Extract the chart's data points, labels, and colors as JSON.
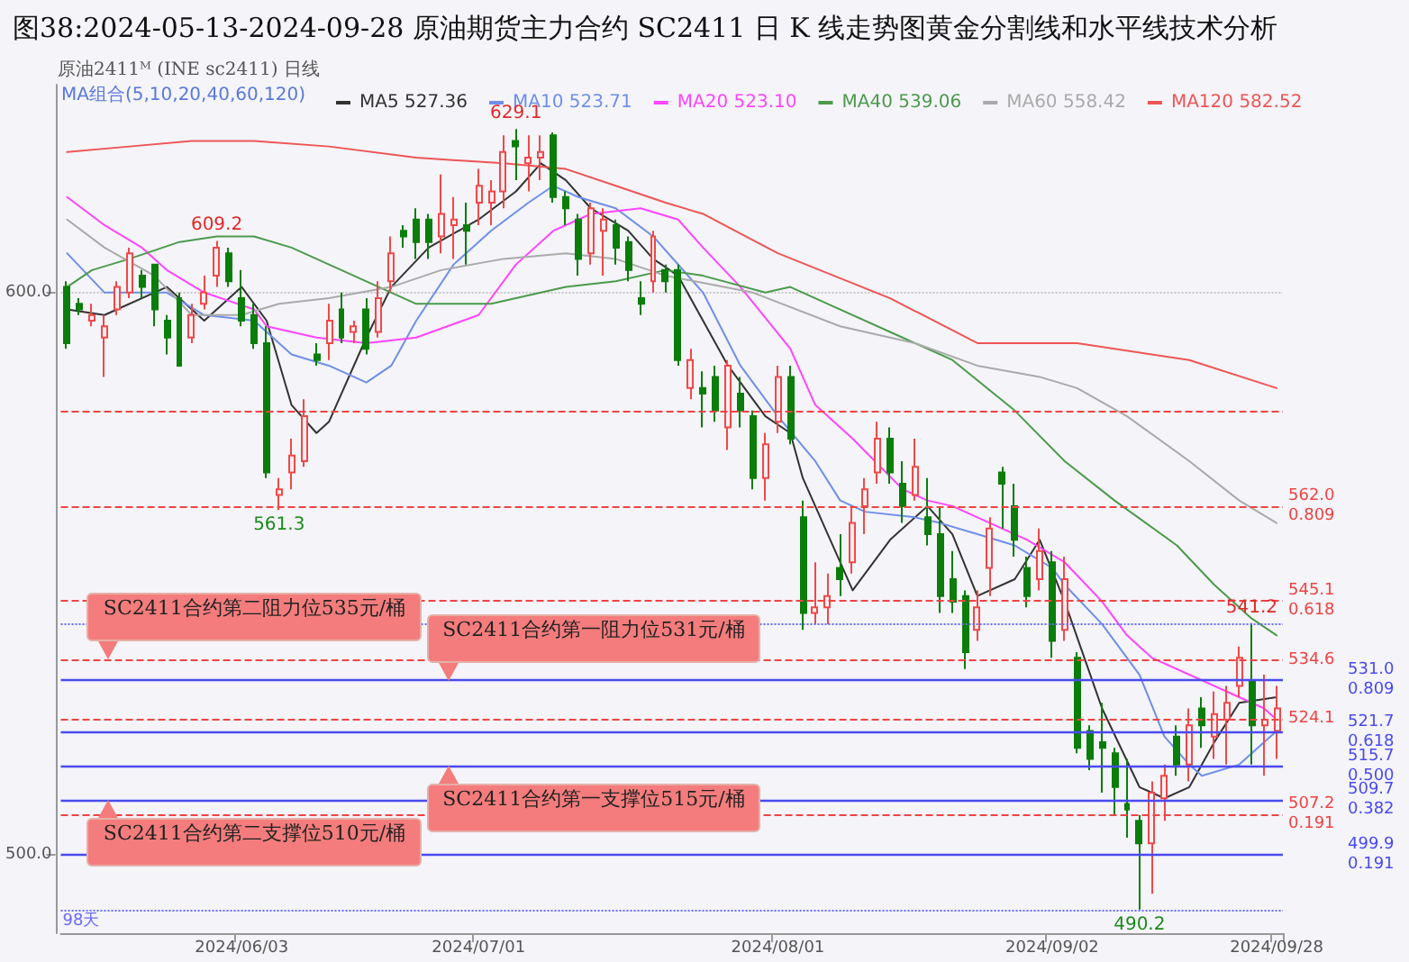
{
  "chart_data": {
    "type": "candlestick",
    "title": "图38:2024-05-13-2024-09-28 原油期货主力合约 SC2411 日 K 线走势图黄金分割线和水平线技术分析",
    "categories": [
      null,
      null,
      null,
      null,
      null,
      null,
      null,
      null,
      null,
      null,
      null,
      null,
      null,
      null,
      "2024/06/03",
      null,
      null,
      null,
      null,
      null,
      null,
      null,
      null,
      null,
      null,
      null,
      null,
      null,
      null,
      null,
      null,
      null,
      null,
      "2024/07/01",
      null,
      null,
      null,
      null,
      null,
      null,
      null,
      null,
      null,
      null,
      null,
      null,
      null,
      null,
      null,
      null,
      null,
      null,
      null,
      null,
      null,
      null,
      null,
      "2024/08/01",
      null,
      null,
      null,
      null,
      null,
      null,
      null,
      null,
      null,
      null,
      null,
      null,
      null,
      null,
      null,
      null,
      null,
      null,
      null,
      null,
      null,
      "2024/09/02",
      null,
      null,
      null,
      null,
      null,
      null,
      null,
      null,
      null,
      null,
      null,
      null,
      null,
      null,
      null,
      null,
      null,
      "2024/09/28"
    ],
    "ohlc": [
      [
        601,
        602,
        590,
        591
      ],
      [
        598,
        599,
        596,
        597
      ],
      [
        595,
        598,
        594,
        596
      ],
      [
        592,
        596,
        585,
        594
      ],
      [
        597,
        602,
        596,
        601
      ],
      [
        600,
        608,
        599,
        607
      ],
      [
        603,
        604,
        599,
        601
      ],
      [
        605,
        605,
        594,
        597
      ],
      [
        595,
        596,
        589,
        592
      ],
      [
        599,
        600,
        587,
        587
      ],
      [
        592,
        598,
        591,
        596
      ],
      [
        598,
        603,
        597,
        600
      ],
      [
        603,
        609.2,
        601,
        608
      ],
      [
        607,
        608,
        601,
        602
      ],
      [
        599,
        604,
        594,
        595
      ],
      [
        596,
        598,
        590,
        591
      ],
      [
        591,
        594,
        567,
        568
      ],
      [
        564,
        567,
        561.3,
        565
      ],
      [
        568,
        574,
        565,
        571
      ],
      [
        570,
        581,
        569,
        578
      ],
      [
        589,
        591,
        587,
        588
      ],
      [
        591,
        598,
        588,
        595
      ],
      [
        597,
        600,
        591,
        592
      ],
      [
        593,
        595,
        591,
        594
      ],
      [
        597,
        599,
        589,
        590
      ],
      [
        593,
        602,
        592,
        599
      ],
      [
        602,
        610,
        600,
        607
      ],
      [
        611,
        612,
        608,
        610
      ],
      [
        613,
        615,
        606,
        609
      ],
      [
        613,
        614,
        606,
        609
      ],
      [
        610,
        621,
        607,
        614
      ],
      [
        612,
        617,
        606,
        613
      ],
      [
        612,
        616,
        605,
        611
      ],
      [
        616,
        622,
        612,
        619
      ],
      [
        616,
        620,
        612,
        618
      ],
      [
        618,
        628,
        615,
        625
      ],
      [
        627,
        629.1,
        620,
        626
      ],
      [
        623,
        628,
        618,
        624
      ],
      [
        624,
        628,
        620,
        625
      ],
      [
        628,
        628.5,
        616,
        617
      ],
      [
        617,
        618,
        612,
        615
      ],
      [
        613,
        614,
        603,
        606
      ],
      [
        607,
        616,
        605,
        615
      ],
      [
        611,
        615,
        603,
        613
      ],
      [
        612,
        613,
        605,
        608
      ],
      [
        609,
        610,
        602,
        604
      ],
      [
        599,
        602,
        596,
        598
      ],
      [
        602,
        611,
        600,
        610
      ],
      [
        604,
        605,
        600,
        602
      ],
      [
        604,
        605,
        587,
        588
      ],
      [
        583,
        590,
        581,
        588
      ],
      [
        583,
        586,
        576,
        582
      ],
      [
        585,
        587,
        577,
        579
      ],
      [
        576,
        588,
        572,
        587
      ],
      [
        582,
        585,
        576,
        579
      ],
      [
        578,
        579,
        565,
        567
      ],
      [
        567,
        575,
        563,
        573
      ],
      [
        577,
        587,
        575,
        585
      ],
      [
        585,
        587,
        573,
        574
      ],
      [
        560,
        563,
        540,
        543
      ],
      [
        543,
        552,
        541,
        544
      ],
      [
        544,
        550,
        541,
        546
      ],
      [
        551,
        557,
        546,
        549
      ],
      [
        552,
        562,
        550,
        559
      ],
      [
        562,
        567,
        557,
        565
      ],
      [
        568,
        577,
        566,
        574
      ],
      [
        574,
        576,
        566,
        568
      ],
      [
        566,
        570,
        559,
        562
      ],
      [
        564,
        574,
        563,
        569
      ],
      [
        560,
        567,
        555,
        557
      ],
      [
        557,
        562,
        543,
        546
      ],
      [
        549,
        554,
        543,
        545
      ],
      [
        546,
        547,
        533,
        536
      ],
      [
        540,
        547,
        538,
        544
      ],
      [
        551,
        560,
        546,
        558
      ],
      [
        568,
        569,
        558,
        566
      ],
      [
        562,
        566,
        553,
        556
      ],
      [
        551,
        553,
        544,
        546
      ],
      [
        549,
        558,
        547,
        554
      ],
      [
        552,
        554,
        535,
        538
      ],
      [
        540,
        553,
        538,
        549
      ],
      [
        535,
        536,
        518,
        519
      ],
      [
        522,
        523,
        515,
        517
      ],
      [
        520,
        527,
        511,
        519
      ],
      [
        518,
        519,
        507,
        512
      ],
      [
        509,
        517,
        503,
        508
      ],
      [
        506,
        507,
        490.2,
        502
      ],
      [
        502,
        513,
        493,
        511
      ],
      [
        510,
        516,
        506,
        514
      ],
      [
        521,
        523,
        514,
        516
      ],
      [
        516,
        526,
        513,
        523
      ],
      [
        526,
        528,
        519,
        523
      ],
      [
        521,
        529,
        517,
        525
      ],
      [
        524,
        530,
        516,
        527
      ],
      [
        530,
        537,
        528,
        535
      ],
      [
        531,
        541.2,
        516,
        523
      ],
      [
        523,
        532,
        514,
        524
      ],
      [
        522,
        530,
        517,
        526
      ]
    ],
    "series": [
      {
        "name": "MA5 527.36",
        "type": "line",
        "color": "#333333",
        "values": [
          597,
          null,
          null,
          596,
          null,
          null,
          null,
          null,
          601,
          null,
          null,
          595,
          null,
          null,
          601,
          null,
          595,
          null,
          580,
          null,
          575,
          577,
          null,
          null,
          592,
          null,
          601,
          null,
          null,
          608,
          null,
          null,
          null,
          613,
          null,
          null,
          618,
          null,
          623,
          null,
          620,
          null,
          615,
          null,
          null,
          611,
          null,
          606,
          null,
          603,
          null,
          595,
          null,
          587,
          null,
          null,
          578,
          null,
          575,
          567,
          null,
          null,
          null,
          547,
          null,
          null,
          556,
          null,
          null,
          562,
          null,
          557,
          null,
          546,
          null,
          null,
          549,
          null,
          556,
          null,
          545,
          null,
          null,
          526,
          null,
          null,
          512,
          null,
          510,
          null,
          512,
          null,
          520,
          null,
          527,
          null,
          null,
          528
        ]
      },
      {
        "name": "MA10 523.71",
        "type": "line",
        "color": "#6f8fe8",
        "values": [
          607,
          null,
          null,
          600,
          null,
          null,
          null,
          null,
          600,
          null,
          null,
          596,
          null,
          null,
          null,
          595,
          null,
          null,
          589,
          null,
          null,
          587,
          null,
          null,
          584,
          null,
          587,
          null,
          595,
          null,
          null,
          605,
          null,
          null,
          611,
          null,
          null,
          616,
          null,
          619,
          null,
          617,
          null,
          null,
          615,
          null,
          null,
          610,
          null,
          null,
          null,
          600,
          null,
          null,
          587,
          null,
          null,
          578,
          null,
          null,
          570,
          null,
          563,
          null,
          561,
          null,
          null,
          null,
          560,
          null,
          559,
          null,
          null,
          557,
          null,
          null,
          555,
          null,
          null,
          551,
          548,
          null,
          null,
          541,
          null,
          null,
          532,
          null,
          521,
          null,
          516,
          514,
          null,
          null,
          516,
          null,
          null,
          522
        ]
      },
      {
        "name": "MA20 523.10",
        "type": "line",
        "color": "#ff44ff",
        "values": [
          617,
          null,
          null,
          612,
          null,
          null,
          608,
          null,
          604,
          null,
          null,
          600,
          null,
          null,
          null,
          597,
          594,
          null,
          null,
          null,
          592,
          null,
          null,
          null,
          591,
          null,
          null,
          null,
          592,
          null,
          null,
          null,
          null,
          596,
          null,
          null,
          605,
          null,
          null,
          611,
          null,
          null,
          614,
          null,
          null,
          null,
          615,
          null,
          null,
          613,
          null,
          608,
          null,
          null,
          601,
          null,
          null,
          null,
          590,
          null,
          580,
          null,
          null,
          574,
          null,
          null,
          null,
          565,
          null,
          563,
          null,
          562,
          null,
          null,
          559,
          null,
          null,
          556,
          null,
          null,
          552,
          null,
          null,
          545,
          null,
          539,
          null,
          535,
          null,
          null,
          532,
          null,
          null,
          529,
          null,
          null,
          526,
          524
        ]
      },
      {
        "name": "MA40 539.06",
        "type": "line",
        "color": "#4c9a4c",
        "values": [
          601,
          null,
          604,
          null,
          null,
          606,
          null,
          null,
          null,
          609,
          null,
          null,
          610,
          null,
          null,
          610,
          null,
          null,
          608,
          null,
          null,
          605,
          null,
          null,
          null,
          601,
          null,
          null,
          598,
          null,
          null,
          null,
          null,
          null,
          598,
          null,
          null,
          null,
          null,
          null,
          601,
          null,
          null,
          null,
          602,
          null,
          null,
          null,
          604,
          null,
          null,
          603,
          null,
          null,
          null,
          null,
          600,
          null,
          601,
          null,
          null,
          598,
          null,
          null,
          null,
          null,
          null,
          592,
          null,
          null,
          null,
          588,
          null,
          null,
          null,
          null,
          579,
          null,
          null,
          null,
          570,
          null,
          null,
          null,
          563,
          null,
          null,
          null,
          null,
          555,
          null,
          null,
          548,
          null,
          null,
          542,
          null,
          539
        ]
      },
      {
        "name": "MA60 558.42",
        "type": "line",
        "color": "#aaaaaa",
        "values": [
          613,
          null,
          null,
          608,
          null,
          null,
          null,
          603,
          null,
          null,
          596,
          null,
          null,
          null,
          596,
          null,
          null,
          598,
          null,
          null,
          null,
          599,
          null,
          null,
          null,
          null,
          601,
          null,
          null,
          null,
          604,
          null,
          null,
          null,
          null,
          606,
          null,
          null,
          null,
          null,
          607,
          null,
          null,
          null,
          606,
          null,
          null,
          null,
          603,
          null,
          null,
          null,
          null,
          null,
          null,
          600,
          null,
          null,
          null,
          null,
          null,
          null,
          594,
          null,
          null,
          null,
          null,
          null,
          591,
          null,
          null,
          null,
          null,
          587,
          null,
          null,
          null,
          null,
          585,
          null,
          null,
          583,
          null,
          null,
          null,
          578,
          null,
          null,
          null,
          null,
          570,
          null,
          null,
          null,
          563,
          null,
          null,
          559
        ]
      },
      {
        "name": "MA120 582.52",
        "type": "line",
        "color": "#ee5555",
        "values": [
          625,
          null,
          null,
          null,
          null,
          626,
          null,
          null,
          null,
          null,
          627,
          null,
          null,
          null,
          null,
          627,
          null,
          null,
          null,
          null,
          null,
          626,
          null,
          null,
          null,
          null,
          null,
          null,
          624,
          null,
          null,
          null,
          null,
          null,
          null,
          623,
          null,
          null,
          null,
          null,
          622,
          null,
          null,
          null,
          619,
          null,
          null,
          null,
          616,
          null,
          null,
          614,
          null,
          null,
          null,
          null,
          null,
          607,
          null,
          null,
          null,
          null,
          null,
          null,
          null,
          null,
          599,
          null,
          null,
          null,
          null,
          null,
          null,
          591,
          null,
          null,
          null,
          null,
          null,
          null,
          null,
          591,
          null,
          null,
          null,
          null,
          null,
          null,
          null,
          null,
          588,
          null,
          null,
          null,
          null,
          null,
          null,
          583
        ]
      }
    ],
    "ylim": [
      486,
      637
    ],
    "yticks": [
      {
        "value": 500,
        "label": "500.0"
      },
      {
        "value": 600,
        "label": "600.0"
      }
    ],
    "grid": "y",
    "legend": "top",
    "marker": "none",
    "line_style": "solid",
    "ref_lines": [
      {
        "axis": "y",
        "value": 579.0,
        "color": "#ee4444",
        "line_style": "dashed"
      },
      {
        "axis": "y",
        "value": 562.0,
        "label": "562.0\n0.809",
        "color": "#ee4444",
        "line_style": "dashed"
      },
      {
        "axis": "y",
        "value": 545.1,
        "label": "545.1\n0.618",
        "color": "#ee4444",
        "line_style": "dashed"
      },
      {
        "axis": "y",
        "value": 534.6,
        "label": "534.6",
        "color": "#ee4444",
        "line_style": "dashed"
      },
      {
        "axis": "y",
        "value": 524.1,
        "label": "524.1",
        "color": "#ee4444",
        "line_style": "dashed"
      },
      {
        "axis": "y",
        "value": 507.2,
        "label": "507.2\n0.191",
        "color": "#ee4444",
        "line_style": "dashed"
      },
      {
        "axis": "y",
        "value": 531.0,
        "label": "531.0\n0.809",
        "color": "#4a4af0",
        "line_style": "solid"
      },
      {
        "axis": "y",
        "value": 521.7,
        "label": "521.7\n0.618",
        "color": "#4a4af0",
        "line_style": "solid"
      },
      {
        "axis": "y",
        "value": 515.7,
        "label": "515.7\n0.500",
        "color": "#4a4af0",
        "line_style": "solid"
      },
      {
        "axis": "y",
        "value": 509.7,
        "label": "509.7\n0.382",
        "color": "#4a4af0",
        "line_style": "solid"
      },
      {
        "axis": "y",
        "value": 499.9,
        "label": "499.9\n0.191",
        "color": "#4a4af0",
        "line_style": "solid"
      },
      {
        "axis": "y",
        "value": 541.2,
        "color": "#6a6aff",
        "line_style": "dotted"
      },
      {
        "axis": "y",
        "value": 490.2,
        "label": "98天",
        "color": "#6a6aff",
        "line_style": "dotted"
      }
    ],
    "annotations": [
      "原油2411ᴹ (INE sc2411) 日线",
      "MA组合(5,10,20,40,60,120)",
      {
        "text": "SC2411合约第二阻力位535元/桶",
        "y": 534.6
      },
      {
        "text": "SC2411合约第一阻力位531元/桶",
        "y": 531.0
      },
      {
        "text": "SC2411合约第二支撑位510元/桶",
        "y": 509.7
      },
      {
        "text": "SC2411合约第一支撑位515元/桶",
        "y": 515.7
      },
      {
        "text": "609.2",
        "y": 609.2
      },
      {
        "text": "629.1",
        "y": 629.1
      },
      {
        "text": "561.3",
        "y": 561.3
      },
      {
        "text": "541.2",
        "y": 541.2
      },
      {
        "text": "490.2",
        "y": 490.2
      }
    ]
  }
}
